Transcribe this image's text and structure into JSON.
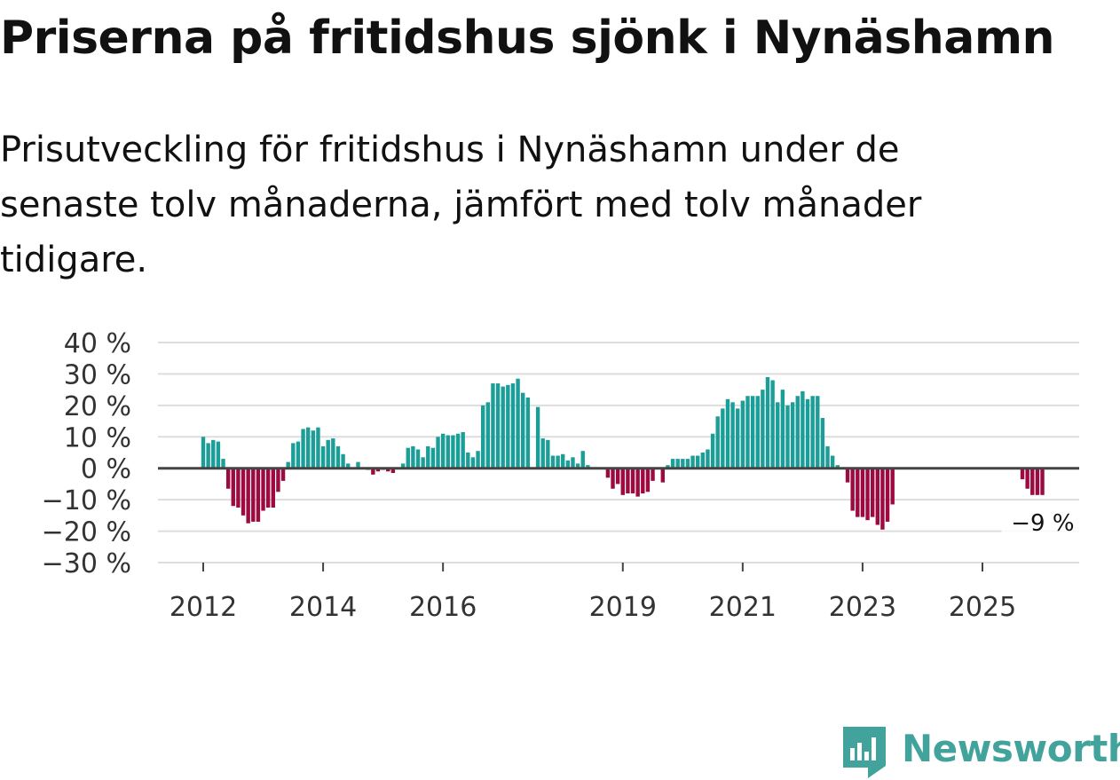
{
  "title": "Priserna på fritidshus sjönk i Nynäshamn",
  "subtitle": "Prisutveckling för fritidshus i Nynäshamn under de senaste tolv månaderna, jämfört med tolv månader tidigare.",
  "brand": {
    "name": "Newsworthy",
    "color": "#41A39B",
    "icon": "newsworthy-logo-icon"
  },
  "colors": {
    "positive": "#1B9E98",
    "negative": "#9C0A3F",
    "zero_line": "#444444",
    "grid": "#DDDDDD",
    "axis_text": "#333333"
  },
  "chart_data": {
    "type": "bar",
    "ylim": [
      -30,
      40
    ],
    "yticks": [
      -30,
      -20,
      -10,
      0,
      10,
      20,
      30,
      40
    ],
    "ytick_labels": [
      "−30 %",
      "−20 %",
      "−10 %",
      "0 %",
      "10 %",
      "20 %",
      "30 %",
      "40 %"
    ],
    "xticks": [
      2012,
      2014,
      2016,
      2019,
      2021,
      2023,
      2025
    ],
    "xtick_labels": [
      "2012",
      "2014",
      "2016",
      "2019",
      "2021",
      "2023",
      "2025"
    ],
    "grid": true,
    "start": "2012-01",
    "frequency": "monthly",
    "values": [
      10,
      8,
      9,
      8.5,
      3,
      -6.5,
      -12,
      -12.5,
      -15,
      -17.5,
      -17,
      -17,
      -13.5,
      -12.5,
      -12.5,
      -7.5,
      -4,
      2,
      8,
      8.5,
      12.5,
      13,
      12,
      13,
      7,
      9,
      9.5,
      7,
      4.5,
      1.5,
      0,
      2,
      0,
      -0.5,
      -2,
      -1,
      -0.5,
      -1,
      -1.5,
      0,
      1.5,
      6.5,
      7,
      6,
      3.5,
      7,
      6.5,
      10,
      11,
      10.5,
      10.5,
      11,
      11.5,
      5,
      3.5,
      5.5,
      20,
      21,
      27,
      27,
      26,
      26.5,
      27,
      28.5,
      24,
      22.5,
      null,
      19.5,
      9.5,
      9,
      4,
      4,
      4.5,
      2.5,
      3.5,
      1.5,
      5.5,
      1,
      null,
      null,
      null,
      -3,
      -6.5,
      -5,
      -8.5,
      -8,
      -8,
      -9,
      -8,
      -7.5,
      -4,
      null,
      -4.5,
      1,
      3,
      3,
      3,
      3,
      4,
      4,
      5,
      6,
      11,
      16.5,
      19,
      22,
      21,
      19,
      21.5,
      23,
      23,
      23,
      25,
      29,
      28,
      21,
      25,
      20,
      21,
      23,
      24.5,
      22,
      23,
      23,
      16,
      7,
      4,
      1,
      null,
      -4.5,
      -13.5,
      -15.5,
      -15.5,
      -16.5,
      -15.5,
      -18,
      -19.5,
      -17,
      -11.5,
      null,
      null,
      null,
      null,
      null,
      null,
      null,
      null,
      null,
      null,
      null,
      null,
      null,
      null,
      null,
      null,
      null,
      null,
      null,
      null,
      null,
      null,
      null,
      null,
      null,
      -3.5,
      -6.5,
      -8.5,
      -8.5,
      -8.5
    ],
    "annotation": {
      "text": "−9 %"
    }
  }
}
